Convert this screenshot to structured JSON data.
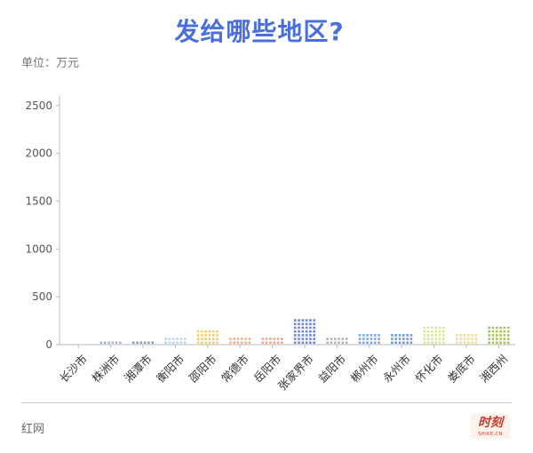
{
  "title": "发给哪些地区?",
  "unit_label": "单位：万元",
  "source": "红网",
  "logo": {
    "text": "时刻",
    "sub": "SHIKE.CN"
  },
  "chart_data": {
    "type": "bar",
    "style": "dotted-pictogram",
    "title": "发给哪些地区?",
    "ylabel": "单位：万元",
    "ylim": [
      0,
      2600
    ],
    "yticks": [
      0,
      500,
      1000,
      1500,
      2000,
      2500
    ],
    "grid": false,
    "categories": [
      "长沙市",
      "株洲市",
      "湘潭市",
      "衡阳市",
      "邵阳市",
      "常德市",
      "岳阳市",
      "张家界市",
      "益阳市",
      "郴州市",
      "永州市",
      "怀化市",
      "娄底市",
      "湘西州"
    ],
    "values": [
      0,
      50,
      30,
      90,
      170,
      60,
      65,
      290,
      60,
      100,
      115,
      185,
      120,
      180
    ],
    "colors": [
      "#9aa7b8",
      "#a9b8c4",
      "#8e9db4",
      "#bcd6f0",
      "#f2cc6e",
      "#f0b28a",
      "#eca890",
      "#6f83d8",
      "#b3b3b3",
      "#7fa6e0",
      "#6f98d6",
      "#d9e694",
      "#f2dc96",
      "#a8c35a"
    ]
  }
}
